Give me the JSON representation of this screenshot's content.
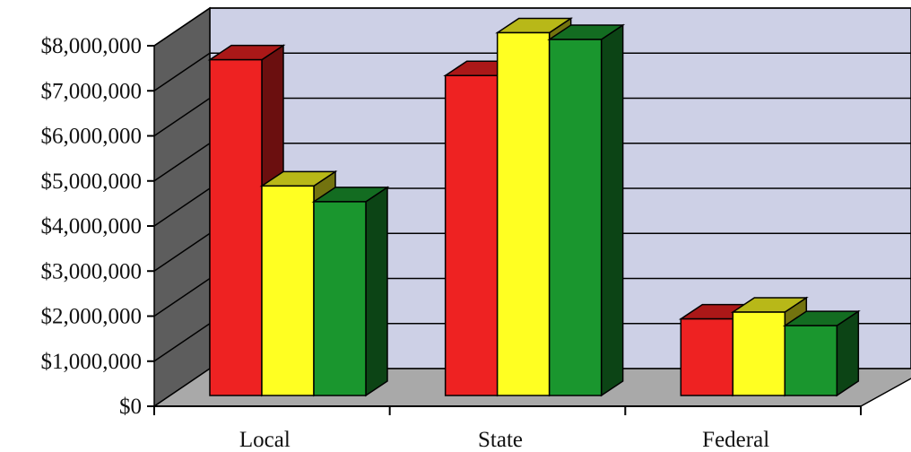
{
  "chart_data": {
    "type": "bar",
    "categories": [
      "Local",
      "State",
      "Federal"
    ],
    "series": [
      {
        "values": [
          7450000,
          7100000,
          1700000
        ],
        "color": "#ee2222"
      },
      {
        "values": [
          4650000,
          8050000,
          1850000
        ],
        "color": "#ffff22"
      },
      {
        "values": [
          4300000,
          7900000,
          1550000
        ],
        "color": "#1a962e"
      }
    ],
    "y_ticks": [
      "$0",
      "$1,000,000",
      "$2,000,000",
      "$3,000,000",
      "$4,000,000",
      "$5,000,000",
      "$6,000,000",
      "$7,000,000",
      "$8,000,000"
    ],
    "ylim": [
      0,
      8000000
    ],
    "grid": true,
    "style": "3d-clustered-column",
    "wall_color": "#cdd0e6",
    "floor_color": "#a9a9a9",
    "side_wall_color": "#5d5d5d"
  }
}
